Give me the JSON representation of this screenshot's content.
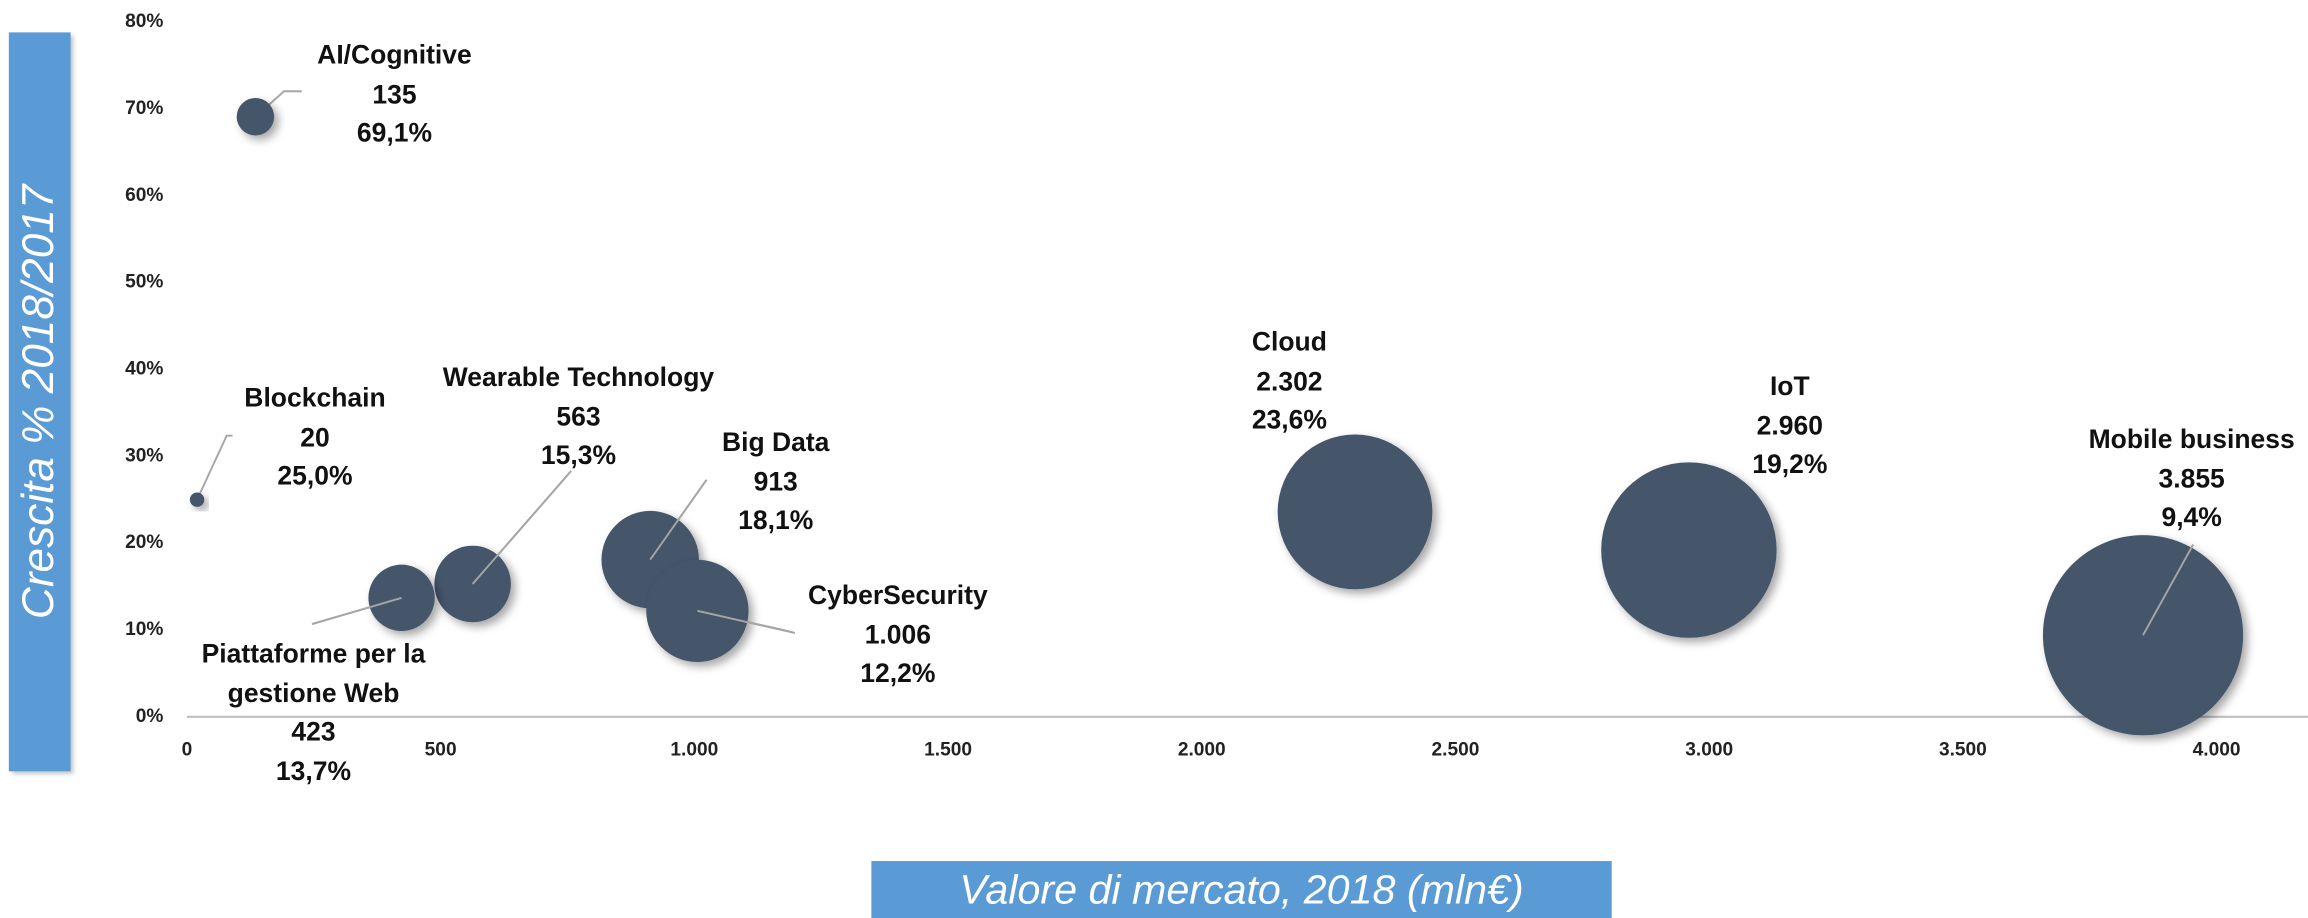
{
  "chart_data": {
    "type": "bubble",
    "xlabel": "Valore di mercato, 2018 (mln€)",
    "ylabel": "Crescita % 2018/2017",
    "color": "#44546a",
    "names": [
      "AI/Cognitive",
      "Blockchain",
      "Wearable Technology",
      "Big Data",
      "CyberSecurity",
      "Piattaforme per la gestione Web",
      "Cloud",
      "IoT",
      "Mobile business"
    ],
    "x": [
      135,
      20,
      563,
      913,
      1006,
      423,
      2302,
      2960,
      3855
    ],
    "x_labels": [
      "135",
      "20",
      "563",
      "913",
      "1.006",
      "423",
      "2.302",
      "2.960",
      "3.855"
    ],
    "values": [
      69.1,
      25.0,
      15.3,
      18.1,
      12.2,
      13.7,
      23.6,
      19.2,
      9.4
    ],
    "value_labels": [
      "69,1%",
      "25,0%",
      "15,3%",
      "18,1%",
      "12,2%",
      "13,7%",
      "23,6%",
      "19,2%",
      "9,4%"
    ],
    "xlim": [
      0,
      4180
    ],
    "xticks": [
      0,
      500,
      {
        "value": 1000,
        "label": "1.000"
      },
      {
        "value": 1500,
        "label": "1.500"
      },
      {
        "value": 2000,
        "label": "2.000"
      },
      {
        "value": 2500,
        "label": "2.500"
      },
      {
        "value": 3000,
        "label": "3.000"
      },
      {
        "value": 3500,
        "label": "3.500"
      },
      {
        "value": 4000,
        "label": "4.000"
      }
    ],
    "ylim": [
      0,
      80
    ],
    "yticks": [
      {
        "value": 0,
        "label": "0%"
      },
      {
        "value": 10,
        "label": "10%"
      },
      {
        "value": 20,
        "label": "20%"
      },
      {
        "value": 30,
        "label": "30%"
      },
      {
        "value": 40,
        "label": "40%"
      },
      {
        "value": 50,
        "label": "50%"
      },
      {
        "value": 60,
        "label": "60%"
      },
      {
        "value": 70,
        "label": "70%"
      },
      {
        "value": 80,
        "label": "80%"
      }
    ]
  }
}
